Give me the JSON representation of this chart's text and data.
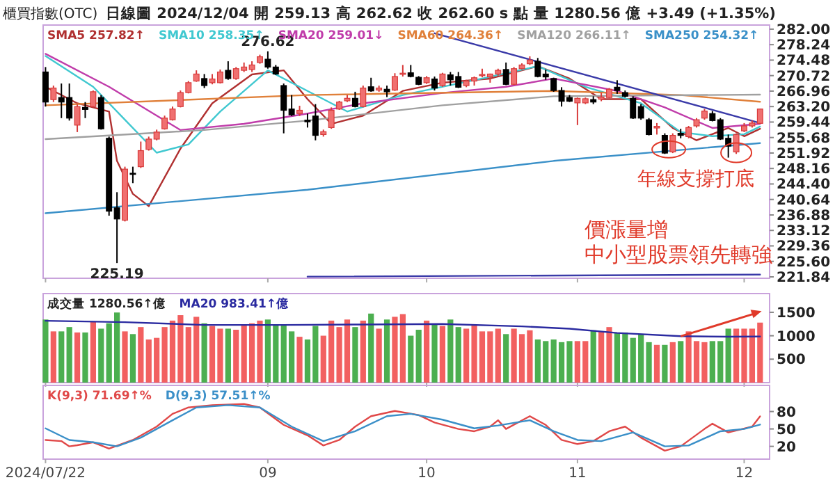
{
  "chart_data": [
    {
      "type": "candlestick",
      "title": "櫃買指數(OTC)",
      "subtitle": "日線圖 2024/12/04 開 259.13 高 262.62 收 262.60 s 點 量 1280.56 億 +3.49 (+1.35%)",
      "categories": [
        "2024/07/22",
        null,
        null,
        null,
        null,
        null,
        null,
        null,
        null,
        null,
        null,
        null,
        null,
        null,
        null,
        null,
        null,
        null,
        null,
        null,
        null,
        null,
        null,
        null,
        null,
        null,
        null,
        null,
        "09",
        null,
        null,
        null,
        null,
        null,
        null,
        null,
        null,
        null,
        null,
        null,
        null,
        null,
        null,
        null,
        null,
        null,
        null,
        null,
        "10",
        null,
        null,
        null,
        null,
        null,
        null,
        null,
        null,
        null,
        null,
        null,
        null,
        null,
        null,
        null,
        null,
        null,
        null,
        "11",
        null,
        null,
        null,
        null,
        null,
        null,
        null,
        null,
        null,
        null,
        null,
        null,
        null,
        null,
        null,
        null,
        null,
        null,
        null,
        null,
        "12",
        null,
        null
      ],
      "ohlc": [
        [
          271.6,
          272.8,
          263.2,
          264.3
        ],
        [
          264.9,
          268.3,
          264.3,
          267.7
        ],
        [
          265.4,
          268.8,
          260.4,
          264.3
        ],
        [
          265.4,
          268.8,
          259.8,
          260.4
        ],
        [
          258.7,
          263.8,
          257.0,
          263.2
        ],
        [
          263.0,
          264.3,
          260.4,
          262.5
        ],
        [
          263.2,
          267.1,
          263.0,
          266.8
        ],
        [
          265.4,
          266.0,
          257.6,
          257.8
        ],
        [
          255.5,
          255.9,
          236.7,
          237.8
        ],
        [
          238.6,
          242.4,
          225.19,
          235.9
        ],
        [
          235.6,
          248.6,
          235.3,
          248.0
        ],
        [
          247.0,
          248.6,
          244.6,
          246.8
        ],
        [
          248.6,
          254.7,
          248.3,
          252.5
        ],
        [
          252.8,
          255.9,
          252.5,
          255.3
        ],
        [
          255.3,
          257.6,
          255.0,
          257.0
        ],
        [
          257.8,
          261.0,
          257.6,
          260.4
        ],
        [
          260.0,
          263.2,
          259.8,
          262.6
        ],
        [
          263.2,
          267.1,
          263.0,
          266.6
        ],
        [
          266.6,
          269.4,
          266.4,
          269.0
        ],
        [
          269.4,
          272.0,
          269.2,
          271.1
        ],
        [
          270.0,
          271.1,
          267.7,
          268.3
        ],
        [
          269.0,
          271.1,
          268.6,
          269.9
        ],
        [
          269.0,
          272.2,
          268.8,
          271.6
        ],
        [
          272.0,
          274.2,
          269.7,
          270.0
        ],
        [
          270.0,
          272.8,
          269.7,
          272.4
        ],
        [
          272.0,
          273.9,
          271.6,
          272.8
        ],
        [
          272.2,
          274.2,
          271.6,
          273.3
        ],
        [
          273.9,
          275.8,
          273.6,
          275.3
        ],
        [
          274.7,
          276.62,
          272.4,
          272.8
        ],
        [
          272.8,
          273.3,
          270.9,
          271.1
        ],
        [
          268.3,
          268.8,
          256.7,
          262.3
        ],
        [
          262.6,
          266.0,
          260.9,
          261.2
        ],
        [
          261.5,
          263.4,
          260.9,
          262.3
        ],
        [
          259.9,
          261.5,
          258.1,
          259.5
        ],
        [
          260.9,
          263.8,
          255.0,
          256.2
        ],
        [
          256.4,
          257.6,
          255.9,
          257.1
        ],
        [
          258.1,
          263.0,
          257.8,
          262.3
        ],
        [
          262.6,
          264.6,
          262.4,
          264.3
        ],
        [
          264.6,
          266.0,
          264.3,
          265.2
        ],
        [
          265.2,
          266.8,
          263.0,
          263.2
        ],
        [
          263.2,
          268.3,
          263.0,
          267.7
        ],
        [
          268.0,
          270.2,
          266.8,
          267.0
        ],
        [
          267.2,
          268.3,
          266.8,
          267.7
        ],
        [
          267.4,
          268.3,
          265.5,
          266.8
        ],
        [
          267.2,
          271.3,
          267.0,
          270.5
        ],
        [
          271.1,
          273.3,
          270.5,
          271.3
        ],
        [
          271.4,
          273.3,
          270.3,
          270.5
        ],
        [
          270.3,
          270.6,
          268.4,
          268.6
        ],
        [
          269.0,
          270.6,
          268.7,
          270.2
        ],
        [
          269.9,
          270.5,
          267.1,
          267.7
        ],
        [
          268.3,
          271.4,
          268.0,
          271.1
        ],
        [
          270.9,
          271.6,
          268.3,
          269.7
        ],
        [
          270.5,
          271.6,
          267.7,
          267.9
        ],
        [
          268.3,
          269.7,
          267.9,
          269.4
        ],
        [
          269.4,
          270.5,
          268.3,
          270.2
        ],
        [
          270.7,
          272.4,
          270.3,
          271.0
        ],
        [
          270.4,
          271.2,
          269.0,
          271.1
        ],
        [
          271.1,
          272.4,
          270.7,
          272.0
        ],
        [
          272.2,
          273.9,
          268.4,
          268.6
        ],
        [
          268.6,
          272.8,
          268.4,
          272.4
        ],
        [
          272.4,
          273.7,
          272.2,
          273.3
        ],
        [
          273.6,
          275.4,
          273.3,
          274.5
        ],
        [
          274.2,
          275.0,
          270.3,
          270.5
        ],
        [
          271.1,
          272.2,
          269.7,
          270.4
        ],
        [
          270.0,
          270.2,
          266.8,
          267.1
        ],
        [
          267.1,
          267.9,
          263.2,
          264.5
        ],
        [
          265.4,
          266.0,
          264.3,
          264.5
        ],
        [
          264.1,
          265.4,
          258.7,
          265.2
        ],
        [
          264.1,
          265.4,
          263.8,
          265.1
        ],
        [
          264.9,
          265.7,
          263.8,
          264.3
        ],
        [
          265.0,
          266.6,
          264.5,
          265.5
        ],
        [
          265.4,
          267.7,
          265.2,
          267.4
        ],
        [
          267.9,
          269.6,
          266.3,
          267.1
        ],
        [
          266.6,
          267.1,
          265.4,
          265.7
        ],
        [
          265.2,
          265.7,
          260.2,
          260.4
        ],
        [
          263.2,
          263.8,
          260.0,
          260.4
        ],
        [
          260.0,
          260.4,
          256.2,
          256.4
        ],
        [
          258.0,
          259.2,
          256.4,
          258.4
        ],
        [
          256.2,
          256.7,
          251.7,
          251.9
        ],
        [
          252.2,
          256.7,
          251.9,
          256.2
        ],
        [
          256.7,
          257.8,
          255.5,
          256.2
        ],
        [
          255.9,
          258.5,
          255.5,
          258.1
        ],
        [
          258.5,
          260.4,
          258.1,
          260.0
        ],
        [
          260.4,
          262.6,
          260.0,
          262.1
        ],
        [
          261.5,
          262.1,
          259.6,
          259.8
        ],
        [
          260.0,
          260.4,
          255.1,
          255.3
        ],
        [
          255.5,
          256.4,
          250.8,
          253.6
        ],
        [
          252.2,
          256.7,
          251.7,
          256.4
        ],
        [
          257.3,
          259.2,
          257.0,
          258.5
        ],
        [
          258.5,
          259.8,
          258.1,
          259.2
        ],
        [
          259.13,
          262.62,
          259.0,
          262.6
        ]
      ],
      "colors": [
        "#000000",
        "#f07070",
        "#000000",
        "#000000",
        "#f07070",
        "#000000",
        "#f07070",
        "#000000",
        "#000000",
        "#000000",
        "#f07070",
        "#000000",
        "#f07070",
        "#f07070",
        "#f07070",
        "#f07070",
        "#f07070",
        "#f07070",
        "#f07070",
        "#f07070",
        "#000000",
        "#f07070",
        "#f07070",
        "#000000",
        "#f07070",
        "#f07070",
        "#f07070",
        "#f07070",
        "#000000",
        "#000000",
        "#000000",
        "#000000",
        "#f07070",
        "#000000",
        "#000000",
        "#f07070",
        "#f07070",
        "#f07070",
        "#f07070",
        "#000000",
        "#f07070",
        "#000000",
        "#f07070",
        "#000000",
        "#f07070",
        "#f07070",
        "#000000",
        "#000000",
        "#f07070",
        "#000000",
        "#f07070",
        "#000000",
        "#000000",
        "#f07070",
        "#f07070",
        "#f07070",
        "#f07070",
        "#f07070",
        "#000000",
        "#f07070",
        "#f07070",
        "#f07070",
        "#000000",
        "#000000",
        "#000000",
        "#000000",
        "#000000",
        "#f07070",
        "#f07070",
        "#000000",
        "#f07070",
        "#f07070",
        "#000000",
        "#000000",
        "#000000",
        "#000000",
        "#000000",
        "#f07070",
        "#000000",
        "#f07070",
        "#000000",
        "#f07070",
        "#f07070",
        "#f07070",
        "#000000",
        "#000000",
        "#000000",
        "#f07070",
        "#f07070",
        "#f07070",
        "#f07070"
      ],
      "series": [
        {
          "type": "line",
          "name": "SMA5 257.82↑",
          "color": "#b03030",
          "values": [
            268,
            null,
            null,
            null,
            264,
            null,
            null,
            null,
            262,
            250,
            null,
            242,
            null,
            239,
            null,
            null,
            null,
            253,
            null,
            null,
            null,
            264,
            null,
            null,
            null,
            null,
            271,
            null,
            null,
            null,
            272,
            null,
            null,
            265,
            null,
            null,
            259,
            null,
            null,
            null,
            261,
            null,
            null,
            null,
            null,
            267,
            null,
            null,
            null,
            null,
            269,
            null,
            null,
            null,
            null,
            null,
            270,
            null,
            null,
            null,
            null,
            null,
            273,
            null,
            null,
            null,
            270,
            null,
            null,
            null,
            265,
            null,
            null,
            null,
            null,
            265,
            null,
            null,
            null,
            258,
            null,
            null,
            255,
            null,
            null,
            null,
            258,
            null,
            256,
            null,
            257.82
          ]
        },
        {
          "type": "line",
          "name": "SMA10 258.35↑",
          "color": "#40c8d0",
          "values": [
            275.5,
            null,
            null,
            null,
            null,
            null,
            268,
            null,
            null,
            null,
            260,
            null,
            null,
            null,
            252,
            null,
            null,
            null,
            254,
            null,
            null,
            null,
            262,
            null,
            null,
            null,
            null,
            null,
            272,
            null,
            null,
            null,
            null,
            267,
            null,
            null,
            null,
            null,
            262,
            null,
            null,
            null,
            null,
            null,
            null,
            266,
            null,
            null,
            null,
            null,
            null,
            null,
            null,
            null,
            null,
            270,
            null,
            null,
            null,
            null,
            null,
            null,
            273,
            null,
            null,
            null,
            null,
            null,
            268,
            null,
            null,
            null,
            null,
            null,
            null,
            264,
            null,
            null,
            null,
            null,
            257,
            null,
            null,
            null,
            256,
            null,
            null,
            null,
            256.5,
            null,
            258.35
          ]
        },
        {
          "type": "line",
          "name": "SMA20 259.01↓",
          "color": "#c03caa",
          "values": [
            276,
            null,
            null,
            null,
            null,
            null,
            null,
            null,
            268,
            null,
            null,
            null,
            null,
            null,
            null,
            null,
            null,
            257.5,
            null,
            null,
            null,
            null,
            null,
            null,
            null,
            259,
            null,
            null,
            null,
            null,
            null,
            null,
            null,
            261.5,
            null,
            null,
            null,
            null,
            null,
            null,
            264,
            null,
            null,
            null,
            null,
            null,
            null,
            null,
            null,
            null,
            266.5,
            null,
            null,
            null,
            null,
            null,
            null,
            null,
            268,
            null,
            null,
            null,
            null,
            null,
            270,
            null,
            null,
            null,
            null,
            null,
            null,
            null,
            267,
            null,
            null,
            null,
            null,
            null,
            263,
            null,
            null,
            null,
            null,
            null,
            258,
            null,
            null,
            null,
            null,
            null,
            259.01
          ]
        },
        {
          "type": "line",
          "name": "SMA60 264.36↑",
          "color": "#e0803a",
          "values": [
            263.5,
            null,
            null,
            null,
            null,
            null,
            null,
            null,
            null,
            null,
            null,
            null,
            null,
            null,
            null,
            null,
            null,
            null,
            null,
            null,
            null,
            null,
            null,
            null,
            null,
            null,
            null,
            null,
            null,
            null,
            null,
            null,
            null,
            266,
            null,
            null,
            null,
            null,
            null,
            null,
            null,
            null,
            null,
            null,
            null,
            null,
            null,
            null,
            null,
            null,
            null,
            null,
            null,
            null,
            null,
            null,
            null,
            null,
            null,
            null,
            null,
            null,
            null,
            null,
            267,
            null,
            null,
            null,
            null,
            null,
            null,
            null,
            null,
            null,
            null,
            null,
            null,
            null,
            null,
            null,
            266,
            null,
            null,
            null,
            null,
            null,
            null,
            null,
            null,
            null,
            264.36
          ]
        },
        {
          "type": "line",
          "name": "SMA120 266.11↑",
          "color": "#a0a0a0",
          "values": [
            255.3,
            null,
            null,
            null,
            null,
            null,
            null,
            null,
            null,
            null,
            null,
            null,
            null,
            null,
            null,
            null,
            null,
            null,
            null,
            null,
            257.5,
            null,
            null,
            null,
            null,
            null,
            null,
            null,
            null,
            null,
            null,
            null,
            null,
            259.8,
            null,
            null,
            null,
            null,
            null,
            null,
            null,
            null,
            null,
            null,
            null,
            null,
            null,
            null,
            null,
            null,
            263.5,
            null,
            null,
            null,
            null,
            null,
            null,
            null,
            null,
            null,
            null,
            null,
            null,
            null,
            265.7,
            null,
            null,
            null,
            null,
            null,
            null,
            null,
            null,
            null,
            null,
            null,
            null,
            null,
            null,
            null,
            null,
            null,
            null,
            null,
            null,
            null,
            null,
            null,
            null,
            null,
            266.11
          ]
        },
        {
          "type": "line",
          "name": "SMA250 254.32↑",
          "color": "#3a90c8",
          "values": [
            237.3,
            null,
            null,
            null,
            null,
            null,
            null,
            null,
            null,
            null,
            null,
            null,
            null,
            null,
            null,
            null,
            null,
            null,
            null,
            null,
            null,
            null,
            null,
            null,
            null,
            null,
            null,
            null,
            null,
            null,
            null,
            null,
            null,
            243,
            null,
            null,
            null,
            null,
            null,
            null,
            null,
            null,
            null,
            null,
            null,
            null,
            null,
            null,
            null,
            null,
            null,
            null,
            null,
            null,
            null,
            null,
            null,
            null,
            null,
            null,
            null,
            null,
            null,
            null,
            250,
            null,
            null,
            null,
            null,
            null,
            null,
            null,
            null,
            null,
            null,
            null,
            null,
            null,
            null,
            null,
            null,
            null,
            null,
            null,
            null,
            null,
            null,
            null,
            null,
            null,
            254.32
          ]
        },
        {
          "type": "line",
          "color": "#3a3aa8",
          "values": [
            null,
            null,
            null,
            null,
            null,
            null,
            null,
            null,
            null,
            null,
            null,
            null,
            null,
            null,
            null,
            null,
            null,
            null,
            null,
            null,
            null,
            null,
            null,
            null,
            null,
            null,
            null,
            null,
            null,
            null,
            null,
            null,
            null,
            null,
            null,
            null,
            null,
            null,
            null,
            null,
            null,
            null,
            null,
            null,
            null,
            null,
            null,
            null,
            null,
            281,
            null,
            null,
            null,
            null,
            null,
            null,
            null,
            null,
            null,
            null,
            null,
            null,
            null,
            null,
            null,
            null,
            null,
            null,
            null,
            null,
            null,
            null,
            null,
            null,
            null,
            null,
            null,
            null,
            null,
            null,
            null,
            null,
            null,
            null,
            null,
            null,
            null,
            null,
            null,
            null,
            259.2
          ]
        },
        {
          "type": "line",
          "color": "#3a3aa8",
          "values": [
            null,
            null,
            null,
            null,
            null,
            null,
            null,
            null,
            null,
            null,
            null,
            null,
            null,
            null,
            null,
            null,
            null,
            null,
            null,
            null,
            null,
            null,
            null,
            null,
            null,
            null,
            null,
            null,
            null,
            null,
            null,
            null,
            null,
            221.9,
            null,
            null,
            null,
            null,
            null,
            null,
            null,
            null,
            null,
            null,
            null,
            null,
            null,
            null,
            null,
            null,
            null,
            null,
            null,
            null,
            null,
            null,
            null,
            null,
            null,
            null,
            null,
            null,
            null,
            null,
            null,
            null,
            null,
            null,
            null,
            null,
            null,
            null,
            null,
            null,
            null,
            null,
            null,
            null,
            null,
            null,
            null,
            null,
            null,
            null,
            null,
            null,
            null,
            null,
            null,
            null,
            222.4
          ]
        }
      ],
      "ylim": [
        221.5,
        283.0
      ],
      "yticks": [
        {
          "value": 282.0,
          "label": "282.00"
        },
        {
          "value": 278.24,
          "label": "278.24"
        },
        {
          "value": 274.48,
          "label": "274.48"
        },
        {
          "value": 270.72,
          "label": "270.72"
        },
        {
          "value": 266.96,
          "label": "266.96"
        },
        {
          "value": 263.2,
          "label": "263.20"
        },
        {
          "value": 259.44,
          "label": "259.44"
        },
        {
          "value": 255.68,
          "label": "255.68"
        },
        {
          "value": 251.92,
          "label": "251.92"
        },
        {
          "value": 248.16,
          "label": "248.16"
        },
        {
          "value": 244.4,
          "label": "244.40"
        },
        {
          "value": 240.64,
          "label": "240.64"
        },
        {
          "value": 236.88,
          "label": "236.88"
        },
        {
          "value": 233.12,
          "label": "233.12"
        },
        {
          "value": 229.36,
          "label": "229.36"
        },
        {
          "value": 225.6,
          "label": "225.60"
        },
        {
          "value": 221.84,
          "label": "221.84"
        }
      ],
      "tick_labels": "y",
      "legend": "top left",
      "annotations": [
        {
          "text": "276.62",
          "y": 276.62
        },
        "225.19",
        "年線支撐打底",
        "價漲量增",
        "中小型股票領先轉強"
      ]
    },
    {
      "type": "bar",
      "categories": [
        "2024/07/22",
        null,
        null,
        null,
        null,
        null,
        null,
        null,
        null,
        null,
        null,
        null,
        null,
        null,
        null,
        null,
        null,
        null,
        null,
        null,
        null,
        null,
        null,
        null,
        null,
        null,
        null,
        null,
        "09",
        null,
        null,
        null,
        null,
        null,
        null,
        null,
        null,
        null,
        null,
        null,
        null,
        null,
        null,
        null,
        null,
        null,
        null,
        null,
        "10",
        null,
        null,
        null,
        null,
        null,
        null,
        null,
        null,
        null,
        null,
        null,
        null,
        null,
        null,
        null,
        null,
        null,
        null,
        "11",
        null,
        null,
        null,
        null,
        null,
        null,
        null,
        null,
        null,
        null,
        null,
        null,
        null,
        null,
        null,
        null,
        null,
        null,
        null,
        null,
        "12",
        null,
        null
      ],
      "series": [
        {
          "name": "成交量 1280.56↑億",
          "values": [
            1346,
            1093,
            1093,
            1185,
            1070,
            1070,
            1300,
            1151,
            1266,
            1496,
            1093,
            1035,
            1185,
            920,
            955,
            1185,
            1323,
            1439,
            1185,
            1404,
            1266,
            1208,
            1151,
            1151,
            1128,
            1243,
            1266,
            1323,
            1346,
            1243,
            1243,
            1093,
            978,
            920,
            1208,
            1001,
            1323,
            1185,
            1346,
            1185,
            1323,
            1473,
            1151,
            1346,
            1404,
            1462,
            1001,
            1128,
            1323,
            1243,
            1208,
            1346,
            1185,
            1151,
            1243,
            1093,
            1093,
            1151,
            1035,
            1151,
            1035,
            1116,
            920,
            886,
            920,
            863,
            886,
            886,
            886,
            1116,
            1093,
            1185,
            1070,
            1070,
            955,
            1035,
            863,
            805,
            805,
            863,
            886,
            1093,
            886,
            863,
            886,
            886,
            1151,
            1151,
            1151,
            1151,
            1280.56
          ],
          "colors": [
            "#4caf50",
            "#f26060",
            "#4caf50",
            "#4caf50",
            "#f26060",
            "#4caf50",
            "#f26060",
            "#4caf50",
            "#4caf50",
            "#4caf50",
            "#f26060",
            "#4caf50",
            "#f26060",
            "#f26060",
            "#f26060",
            "#f26060",
            "#f26060",
            "#f26060",
            "#f26060",
            "#f26060",
            "#4caf50",
            "#f26060",
            "#f26060",
            "#4caf50",
            "#f26060",
            "#f26060",
            "#f26060",
            "#f26060",
            "#4caf50",
            "#4caf50",
            "#4caf50",
            "#4caf50",
            "#f26060",
            "#4caf50",
            "#4caf50",
            "#f26060",
            "#f26060",
            "#f26060",
            "#f26060",
            "#4caf50",
            "#f26060",
            "#4caf50",
            "#f26060",
            "#4caf50",
            "#f26060",
            "#f26060",
            "#4caf50",
            "#4caf50",
            "#f26060",
            "#4caf50",
            "#f26060",
            "#4caf50",
            "#4caf50",
            "#f26060",
            "#f26060",
            "#f26060",
            "#f26060",
            "#f26060",
            "#4caf50",
            "#f26060",
            "#f26060",
            "#f26060",
            "#4caf50",
            "#4caf50",
            "#4caf50",
            "#4caf50",
            "#4caf50",
            "#f26060",
            "#f26060",
            "#4caf50",
            "#f26060",
            "#f26060",
            "#4caf50",
            "#4caf50",
            "#4caf50",
            "#4caf50",
            "#4caf50",
            "#f26060",
            "#4caf50",
            "#f26060",
            "#4caf50",
            "#f26060",
            "#f26060",
            "#f26060",
            "#4caf50",
            "#4caf50",
            "#4caf50",
            "#f26060",
            "#f26060",
            "#f26060",
            "#f26060"
          ]
        },
        {
          "type": "line",
          "name": "MA20 983.41↑億",
          "color": "#2a2aa0",
          "values": [
            1320,
            null,
            null,
            null,
            null,
            null,
            null,
            null,
            null,
            null,
            1290,
            null,
            null,
            null,
            null,
            null,
            null,
            null,
            null,
            null,
            1230,
            null,
            null,
            null,
            null,
            null,
            null,
            null,
            null,
            null,
            1230,
            null,
            null,
            null,
            null,
            null,
            null,
            null,
            null,
            null,
            1240,
            null,
            null,
            null,
            null,
            null,
            null,
            null,
            null,
            null,
            1250,
            null,
            null,
            null,
            null,
            null,
            null,
            null,
            null,
            null,
            1200,
            null,
            null,
            null,
            null,
            null,
            1150,
            null,
            null,
            null,
            null,
            null,
            1060,
            null,
            null,
            null,
            null,
            null,
            null,
            null,
            990,
            null,
            null,
            null,
            null,
            null,
            980,
            null,
            null,
            null,
            983.41
          ]
        }
      ],
      "ylim": [
        0,
        1900
      ],
      "yticks": [
        500,
        1000,
        1500
      ],
      "tick_labels": "y",
      "legend": "top left"
    },
    {
      "type": "line",
      "categories": [
        "2024/07/22",
        null,
        null,
        null,
        null,
        null,
        null,
        null,
        null,
        null,
        null,
        null,
        null,
        null,
        null,
        null,
        null,
        null,
        null,
        null,
        null,
        null,
        null,
        null,
        null,
        null,
        null,
        null,
        "09",
        null,
        null,
        null,
        null,
        null,
        null,
        null,
        null,
        null,
        null,
        null,
        null,
        null,
        null,
        null,
        null,
        null,
        null,
        null,
        "10",
        null,
        null,
        null,
        null,
        null,
        null,
        null,
        null,
        null,
        null,
        null,
        null,
        null,
        null,
        null,
        null,
        null,
        null,
        "11",
        null,
        null,
        null,
        null,
        null,
        null,
        null,
        null,
        null,
        null,
        null,
        null,
        null,
        null,
        null,
        null,
        null,
        null,
        null,
        null,
        "12",
        null,
        null
      ],
      "series": [
        {
          "name": "K(9,3) 71.69↑%",
          "color": "#e04848",
          "values": [
            31,
            null,
            29,
            20,
            22,
            null,
            27,
            null,
            16,
            null,
            null,
            31,
            null,
            null,
            54,
            null,
            76,
            null,
            87,
            null,
            null,
            91,
            null,
            null,
            null,
            93,
            null,
            87,
            null,
            null,
            57,
            null,
            null,
            39,
            null,
            21.5,
            null,
            31,
            null,
            54,
            null,
            72,
            null,
            null,
            81,
            null,
            null,
            74,
            null,
            61,
            null,
            null,
            50,
            null,
            46,
            null,
            54,
            65,
            50,
            null,
            null,
            72,
            null,
            57,
            null,
            31,
            null,
            24,
            null,
            29,
            null,
            46,
            null,
            54,
            null,
            35,
            null,
            null,
            12.5,
            null,
            20,
            null,
            null,
            50,
            59,
            null,
            44,
            null,
            null,
            54,
            71.69
          ]
        },
        {
          "name": "D(9,3) 57.51↑%",
          "color": "#3a8fc8",
          "values": [
            51,
            null,
            null,
            31,
            null,
            null,
            27,
            null,
            null,
            20,
            null,
            null,
            35,
            null,
            null,
            null,
            65,
            null,
            null,
            87,
            null,
            null,
            null,
            91,
            null,
            null,
            null,
            87,
            null,
            null,
            null,
            54,
            null,
            null,
            null,
            29,
            null,
            null,
            null,
            46,
            null,
            null,
            null,
            72,
            null,
            null,
            76,
            null,
            null,
            null,
            66,
            null,
            null,
            null,
            51,
            null,
            null,
            56,
            null,
            null,
            null,
            65,
            null,
            null,
            46,
            null,
            null,
            31,
            null,
            null,
            29,
            null,
            null,
            null,
            44,
            null,
            null,
            null,
            20,
            null,
            null,
            21.5,
            null,
            null,
            null,
            46,
            null,
            null,
            50,
            null,
            57.51
          ]
        }
      ],
      "ylim": [
        -2,
        125
      ],
      "yticks": [
        20,
        50,
        80
      ],
      "legend": "top left"
    }
  ]
}
